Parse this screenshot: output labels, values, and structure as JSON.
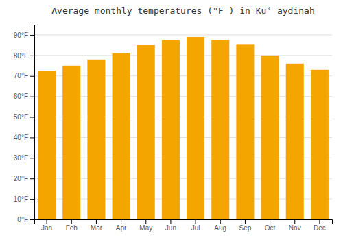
{
  "chart_data": {
    "type": "bar",
    "title": "Average monthly temperatures (°F ) in Kuʿ aydinah",
    "categories": [
      "Jan",
      "Feb",
      "Mar",
      "Apr",
      "May",
      "Jun",
      "Jul",
      "Aug",
      "Sep",
      "Oct",
      "Nov",
      "Dec"
    ],
    "values": [
      72.5,
      75.0,
      78.0,
      81.0,
      85.0,
      87.5,
      89.0,
      87.5,
      85.5,
      80.0,
      76.0,
      73.0
    ],
    "color": "#F5A500",
    "ylim": [
      0,
      95
    ],
    "yticks": [
      {
        "value": 0,
        "label": "0°F"
      },
      {
        "value": 10,
        "label": "10°F"
      },
      {
        "value": 20,
        "label": "20°F"
      },
      {
        "value": 30,
        "label": "30°F"
      },
      {
        "value": 40,
        "label": "40°F"
      },
      {
        "value": 50,
        "label": "50°F"
      },
      {
        "value": 60,
        "label": "60°F"
      },
      {
        "value": 70,
        "label": "70°F"
      },
      {
        "value": 80,
        "label": "80°F"
      },
      {
        "value": 90,
        "label": "90°F"
      }
    ],
    "grid": true
  }
}
